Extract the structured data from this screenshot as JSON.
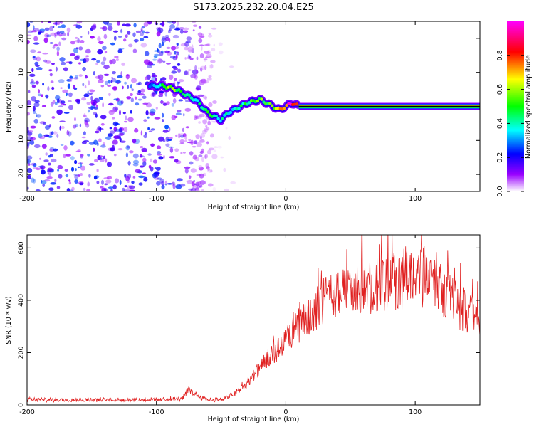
{
  "title": "S173.2025.232.20.04.E25",
  "chart_data": [
    {
      "type": "heatmap",
      "xlabel": "Height of straight line (km)",
      "ylabel": "Frequency (Hz)",
      "xlim": [
        -200,
        150
      ],
      "ylim": [
        -25,
        25
      ],
      "xticks": [
        -200,
        -100,
        0,
        100
      ],
      "yticks": [
        20,
        10,
        0,
        -10,
        -20
      ],
      "colorbar": {
        "label": "Normalized spectral amplitude",
        "range": [
          0.0,
          1.0
        ],
        "ticks": [
          "0.0",
          "0.2",
          "0.4",
          "0.6",
          "0.8"
        ],
        "tick_values": [
          0.0,
          0.2,
          0.4,
          0.6,
          0.8
        ],
        "colors": [
          "#ffffff",
          "#9900ff",
          "#0000ff",
          "#00ffff",
          "#00ff00",
          "#ffff00",
          "#ff0000",
          "#ff00ff"
        ]
      },
      "noise_region": {
        "x": [
          -200,
          -55
        ],
        "amplitude": [
          0.05,
          0.25
        ]
      },
      "ridge": {
        "x": [
          -105,
          -100,
          -95,
          -90,
          -85,
          -80,
          -75,
          -70,
          -65,
          -60,
          -55,
          -50,
          -45,
          -40,
          -35,
          -30,
          -25,
          -20,
          -15,
          -10,
          -5,
          0,
          5,
          10
        ],
        "frequency": [
          6,
          6,
          6,
          5.5,
          5,
          4,
          3,
          2,
          0,
          -2,
          -3,
          -4,
          -2,
          -1,
          0,
          1,
          1.5,
          2,
          1,
          0,
          -1,
          0,
          1,
          0
        ],
        "amplitude": [
          0.3,
          0.4,
          0.5,
          0.6,
          0.6,
          0.5,
          0.45,
          0.4,
          0.45,
          0.5,
          0.45,
          0.4,
          0.4,
          0.35,
          0.45,
          0.5,
          0.55,
          0.6,
          0.55,
          0.6,
          0.7,
          0.85,
          0.95,
          1.0
        ]
      },
      "constant_line": {
        "frequency": 0,
        "x": [
          10,
          150
        ],
        "amplitude": 1.0
      }
    },
    {
      "type": "line",
      "xlabel": "Height of straight line (km)",
      "ylabel": "SNR (10 * v/v)",
      "xlim": [
        -200,
        150
      ],
      "ylim": [
        0,
        650
      ],
      "xticks": [
        -200,
        -100,
        0,
        100
      ],
      "yticks": [
        0,
        200,
        400,
        600
      ],
      "series": [
        {
          "name": "SNR",
          "color": "#e02020",
          "x": [
            -200,
            -150,
            -100,
            -80,
            -75,
            -70,
            -60,
            -50,
            -40,
            -30,
            -20,
            -10,
            0,
            10,
            20,
            30,
            40,
            50,
            60,
            70,
            80,
            85,
            90,
            92,
            100,
            110,
            120,
            130,
            140,
            150
          ],
          "y": [
            20,
            20,
            20,
            25,
            60,
            40,
            20,
            20,
            40,
            80,
            140,
            190,
            240,
            300,
            360,
            400,
            420,
            440,
            450,
            460,
            465,
            470,
            470,
            500,
            490,
            470,
            440,
            400,
            350,
            310
          ]
        }
      ]
    }
  ]
}
